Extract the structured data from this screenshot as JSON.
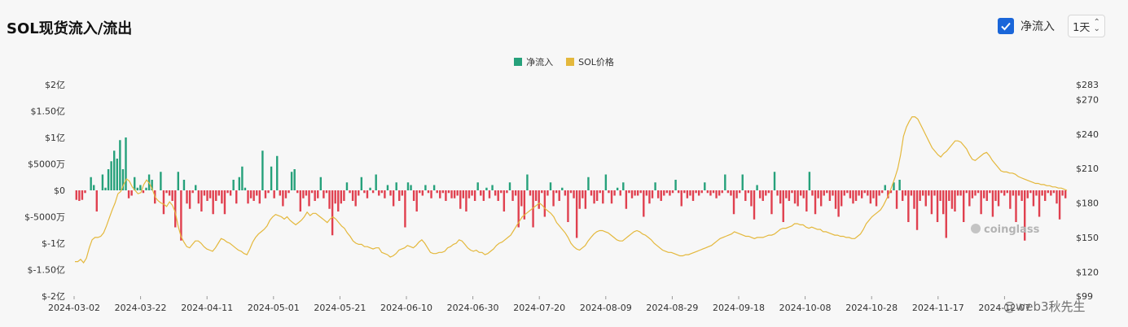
{
  "header": {
    "title": "SOL现货流入/流出",
    "checkbox_label": "净流入",
    "interval": "1天"
  },
  "legend": {
    "netflow": "净流入",
    "price": "SOL价格"
  },
  "colors": {
    "positive": "#26a17b",
    "negative": "#e0404f",
    "price_line": "#e4b83c",
    "checkbox": "#1a66d9"
  },
  "watermarks": {
    "coinglass": "coinglass",
    "weibo": "@web3秋先生"
  },
  "chart_data": {
    "type": "bar",
    "title": "SOL现货流入/流出",
    "x_tick_labels": [
      "2024-03-02",
      "2024-03-22",
      "2024-04-11",
      "2024-05-01",
      "2024-05-21",
      "2024-06-10",
      "2024-06-30",
      "2024-07-20",
      "2024-08-09",
      "2024-08-29",
      "2024-09-18",
      "2024-10-08",
      "2024-10-28",
      "2024-11-17",
      "2024-12-07"
    ],
    "y_left_tick_labels": [
      "$2亿",
      "$1.50亿",
      "$1亿",
      "$5000万",
      "$0",
      "$-5000万",
      "$-1亿",
      "$-1.50亿",
      "$-2亿"
    ],
    "y_right_tick_labels": [
      "$283",
      "$270",
      "$240",
      "$210",
      "$180",
      "$150",
      "$120",
      "$99"
    ],
    "y_left_range_usd_million": [
      -200,
      200
    ],
    "y_right_range_usd": [
      99,
      283
    ],
    "start_date": "2024-03-02",
    "series": [
      {
        "name": "净流入",
        "unit": "USD million",
        "values": [
          -18,
          -20,
          -18,
          -5,
          0,
          25,
          10,
          -40,
          0,
          30,
          5,
          40,
          55,
          75,
          60,
          95,
          40,
          100,
          -15,
          -10,
          25,
          5,
          10,
          -5,
          5,
          30,
          20,
          -25,
          0,
          35,
          -45,
          -5,
          -10,
          -20,
          -70,
          35,
          -95,
          20,
          -25,
          -35,
          -5,
          10,
          -25,
          -40,
          -10,
          -20,
          -15,
          -45,
          -20,
          -10,
          -25,
          -45,
          -5,
          -10,
          20,
          -25,
          25,
          45,
          5,
          -25,
          -15,
          -20,
          -10,
          -25,
          75,
          -15,
          -5,
          45,
          -15,
          65,
          -10,
          -30,
          -15,
          -5,
          35,
          40,
          -5,
          -40,
          -15,
          -10,
          -30,
          -5,
          -20,
          -15,
          25,
          -15,
          -5,
          -35,
          -85,
          -25,
          -40,
          -25,
          -20,
          15,
          -5,
          -20,
          -30,
          -10,
          25,
          -5,
          -15,
          5,
          -5,
          30,
          -10,
          -5,
          -15,
          10,
          -10,
          -30,
          15,
          -20,
          -10,
          -70,
          15,
          10,
          -20,
          -40,
          -5,
          -10,
          10,
          -5,
          -15,
          10,
          -5,
          -15,
          -5,
          -20,
          -5,
          -15,
          -15,
          -10,
          -35,
          -15,
          -40,
          -15,
          -10,
          -20,
          15,
          -10,
          -20,
          5,
          -15,
          10,
          -10,
          -20,
          -5,
          -40,
          -5,
          15,
          -20,
          -10,
          -70,
          -30,
          -55,
          30,
          -10,
          -70,
          -20,
          -35,
          -5,
          -50,
          -10,
          15,
          -30,
          -5,
          -20,
          5,
          -10,
          -60,
          -5,
          -15,
          -90,
          -35,
          -15,
          -35,
          25,
          -10,
          -25,
          -20,
          -5,
          -25,
          30,
          -5,
          -25,
          -10,
          5,
          -10,
          15,
          -35,
          -5,
          -15,
          -10,
          -10,
          -5,
          -50,
          -10,
          -25,
          -15,
          15,
          -15,
          -20,
          -10,
          -5,
          -10,
          -5,
          20,
          -5,
          -30,
          -5,
          -15,
          -10,
          -20,
          -5,
          -10,
          -5,
          15,
          -5,
          -10,
          -5,
          -15,
          -10,
          -5,
          30,
          -5,
          -10,
          -45,
          -15,
          -5,
          30,
          -20,
          -5,
          -30,
          -55,
          10,
          -15,
          -20,
          -10,
          -5,
          -45,
          35,
          -10,
          -25,
          -60,
          -15,
          -20,
          -5,
          -25,
          -30,
          -10,
          -15,
          -40,
          35,
          -10,
          -45,
          -15,
          -30,
          -10,
          -5,
          -20,
          -10,
          -35,
          -50,
          -30,
          -10,
          -5,
          -15,
          -25,
          -20,
          -10,
          -15,
          -5,
          -10,
          -25,
          -15,
          -30,
          -10,
          -5,
          10,
          -15,
          -5,
          15,
          -35,
          20,
          -20,
          -10,
          -60,
          -10,
          -35,
          -75,
          -20,
          -10,
          -30,
          -10,
          -45,
          -10,
          -60,
          -20,
          -45,
          -90,
          -20,
          -35,
          -40,
          -10,
          -10,
          -60,
          -5,
          -30,
          -15,
          -10,
          -5,
          -45,
          -15,
          -20,
          -5,
          -50,
          -20,
          -30,
          -5,
          -10,
          -5,
          -35,
          -10,
          -60,
          -10,
          -20,
          -95,
          -15,
          -5,
          -30,
          -10,
          -50,
          -10,
          -20,
          -5,
          -10,
          -5,
          -25,
          -55,
          -10,
          -15
        ]
      },
      {
        "name": "SOL价格",
        "unit": "USD",
        "values": [
          129,
          129,
          131,
          128,
          132,
          141,
          148,
          150,
          150,
          151,
          154,
          160,
          167,
          174,
          180,
          188,
          190,
          196,
          201,
          199,
          194,
          191,
          188,
          189,
          196,
          200,
          197,
          192,
          185,
          182,
          180,
          179,
          177,
          181,
          178,
          172,
          160,
          151,
          146,
          142,
          141,
          144,
          147,
          147,
          145,
          142,
          140,
          139,
          138,
          141,
          145,
          149,
          148,
          146,
          145,
          143,
          141,
          139,
          138,
          136,
          135,
          140,
          146,
          150,
          153,
          155,
          157,
          160,
          165,
          168,
          170,
          169,
          168,
          166,
          168,
          165,
          163,
          161,
          163,
          165,
          168,
          172,
          169,
          171,
          171,
          169,
          167,
          165,
          163,
          166,
          168,
          166,
          163,
          160,
          158,
          154,
          151,
          147,
          145,
          144,
          144,
          142,
          142,
          141,
          140,
          141,
          141,
          137,
          136,
          135,
          133,
          134,
          136,
          139,
          140,
          141,
          143,
          142,
          141,
          143,
          146,
          148,
          145,
          141,
          137,
          136,
          136,
          137,
          137,
          138,
          141,
          142,
          144,
          145,
          148,
          147,
          144,
          141,
          139,
          138,
          139,
          137,
          137,
          135,
          136,
          138,
          140,
          143,
          145,
          146,
          148,
          150,
          152,
          156,
          160,
          164,
          168,
          170,
          172,
          174,
          176,
          178,
          180,
          178,
          175,
          173,
          171,
          168,
          163,
          160,
          157,
          154,
          150,
          145,
          142,
          140,
          139,
          141,
          143,
          147,
          150,
          153,
          155,
          156,
          156,
          155,
          154,
          152,
          150,
          148,
          147,
          147,
          149,
          151,
          153,
          155,
          156,
          155,
          153,
          152,
          150,
          148,
          145,
          143,
          141,
          139,
          138,
          137,
          137,
          136,
          135,
          134,
          134,
          135,
          135,
          136,
          137,
          138,
          139,
          140,
          141,
          142,
          143,
          145,
          147,
          149,
          150,
          151,
          152,
          153,
          155,
          154,
          153,
          152,
          151,
          151,
          150,
          149,
          150,
          150,
          150,
          151,
          152,
          152,
          153,
          155,
          157,
          158,
          158,
          159,
          160,
          162,
          162,
          161,
          161,
          159,
          158,
          159,
          158,
          157,
          157,
          155,
          155,
          154,
          153,
          152,
          152,
          151,
          151,
          150,
          150,
          149,
          149,
          151,
          153,
          157,
          162,
          165,
          168,
          170,
          172,
          174,
          178,
          183,
          188,
          195,
          202,
          210,
          222,
          238,
          246,
          251,
          255,
          255,
          253,
          248,
          243,
          238,
          233,
          228,
          225,
          222,
          220,
          223,
          225,
          228,
          231,
          234,
          234,
          233,
          230,
          227,
          222,
          218,
          217,
          219,
          221,
          223,
          224,
          221,
          217,
          214,
          211,
          208,
          207,
          207,
          206,
          206,
          205,
          203,
          202,
          201,
          200,
          199,
          198,
          197,
          197,
          196,
          196,
          195,
          195,
          194,
          194,
          193,
          193,
          192,
          191
        ]
      }
    ]
  }
}
